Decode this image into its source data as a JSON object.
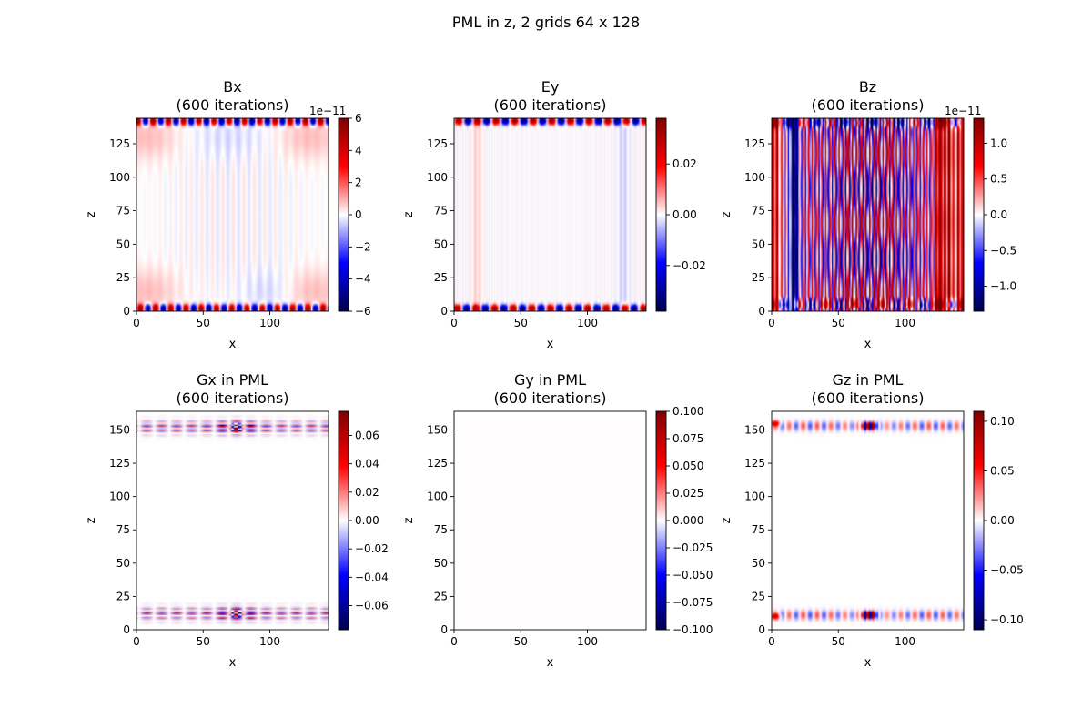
{
  "figure": {
    "suptitle": "PML in z, 2 grids 64 x 128",
    "colormap": "seismic"
  },
  "chart_data": [
    {
      "type": "heatmap",
      "title_line1": "Bx",
      "title_line2": "(600 iterations)",
      "xlabel": "x",
      "ylabel": "z",
      "xlim": [
        0,
        144
      ],
      "ylim": [
        0,
        144
      ],
      "xticks": [
        0,
        50,
        100
      ],
      "yticks": [
        0,
        25,
        50,
        75,
        100,
        125
      ],
      "clim": [
        -6,
        6
      ],
      "cbar_ticks": [
        -6,
        -4,
        -2,
        0,
        2,
        4,
        6
      ],
      "cbar_ticklabels": [
        "−6",
        "−4",
        "−2",
        "0",
        "2",
        "4",
        "6"
      ],
      "cbar_offset": "1e−11",
      "pattern": "bx"
    },
    {
      "type": "heatmap",
      "title_line1": "Ey",
      "title_line2": "(600 iterations)",
      "xlabel": "x",
      "ylabel": "z",
      "xlim": [
        0,
        144
      ],
      "ylim": [
        0,
        144
      ],
      "xticks": [
        0,
        50,
        100
      ],
      "yticks": [
        0,
        25,
        50,
        75,
        100,
        125
      ],
      "clim": [
        -0.038,
        0.038
      ],
      "cbar_ticks": [
        -0.02,
        0,
        0.02
      ],
      "cbar_ticklabels": [
        "−0.02",
        "0.00",
        "0.02"
      ],
      "cbar_offset": "",
      "pattern": "ey"
    },
    {
      "type": "heatmap",
      "title_line1": "Bz",
      "title_line2": "(600 iterations)",
      "xlabel": "x",
      "ylabel": "z",
      "xlim": [
        0,
        144
      ],
      "ylim": [
        0,
        144
      ],
      "xticks": [
        0,
        50,
        100
      ],
      "yticks": [
        0,
        25,
        50,
        75,
        100,
        125
      ],
      "clim": [
        -1.35,
        1.35
      ],
      "cbar_ticks": [
        -1.0,
        -0.5,
        0.0,
        0.5,
        1.0
      ],
      "cbar_ticklabels": [
        "−1.0",
        "−0.5",
        "0.0",
        "0.5",
        "1.0"
      ],
      "cbar_offset": "1e−11",
      "pattern": "bz"
    },
    {
      "type": "heatmap",
      "title_line1": "Gx in PML",
      "title_line2": "(600 iterations)",
      "xlabel": "x",
      "ylabel": "z",
      "xlim": [
        0,
        144
      ],
      "ylim": [
        0,
        164
      ],
      "xticks": [
        0,
        50,
        100
      ],
      "yticks": [
        0,
        25,
        50,
        75,
        100,
        125,
        150
      ],
      "clim": [
        -0.077,
        0.077
      ],
      "cbar_ticks": [
        -0.06,
        -0.04,
        -0.02,
        0.0,
        0.02,
        0.04,
        0.06
      ],
      "cbar_ticklabels": [
        "−0.06",
        "−0.04",
        "−0.02",
        "0.00",
        "0.02",
        "0.04",
        "0.06"
      ],
      "cbar_offset": "",
      "pattern": "gx"
    },
    {
      "type": "heatmap",
      "title_line1": "Gy in PML",
      "title_line2": "(600 iterations)",
      "xlabel": "x",
      "ylabel": "z",
      "xlim": [
        0,
        144
      ],
      "ylim": [
        0,
        164
      ],
      "xticks": [
        0,
        50,
        100
      ],
      "yticks": [
        0,
        25,
        50,
        75,
        100,
        125,
        150
      ],
      "clim": [
        -0.1,
        0.1
      ],
      "cbar_ticks": [
        -0.1,
        -0.075,
        -0.05,
        -0.025,
        0.0,
        0.025,
        0.05,
        0.075,
        0.1
      ],
      "cbar_ticklabels": [
        "−0.100",
        "−0.075",
        "−0.050",
        "−0.025",
        "0.000",
        "0.025",
        "0.050",
        "0.075",
        "0.100"
      ],
      "cbar_offset": "",
      "pattern": "gy"
    },
    {
      "type": "heatmap",
      "title_line1": "Gz in PML",
      "title_line2": "(600 iterations)",
      "xlabel": "x",
      "ylabel": "z",
      "xlim": [
        0,
        144
      ],
      "ylim": [
        0,
        164
      ],
      "xticks": [
        0,
        50,
        100
      ],
      "yticks": [
        0,
        25,
        50,
        75,
        100,
        125,
        150
      ],
      "clim": [
        -0.11,
        0.11
      ],
      "cbar_ticks": [
        -0.1,
        -0.05,
        0.0,
        0.05,
        0.1
      ],
      "cbar_ticklabels": [
        "−0.10",
        "−0.05",
        "0.00",
        "0.05",
        "0.10"
      ],
      "cbar_offset": "",
      "pattern": "gz"
    }
  ]
}
